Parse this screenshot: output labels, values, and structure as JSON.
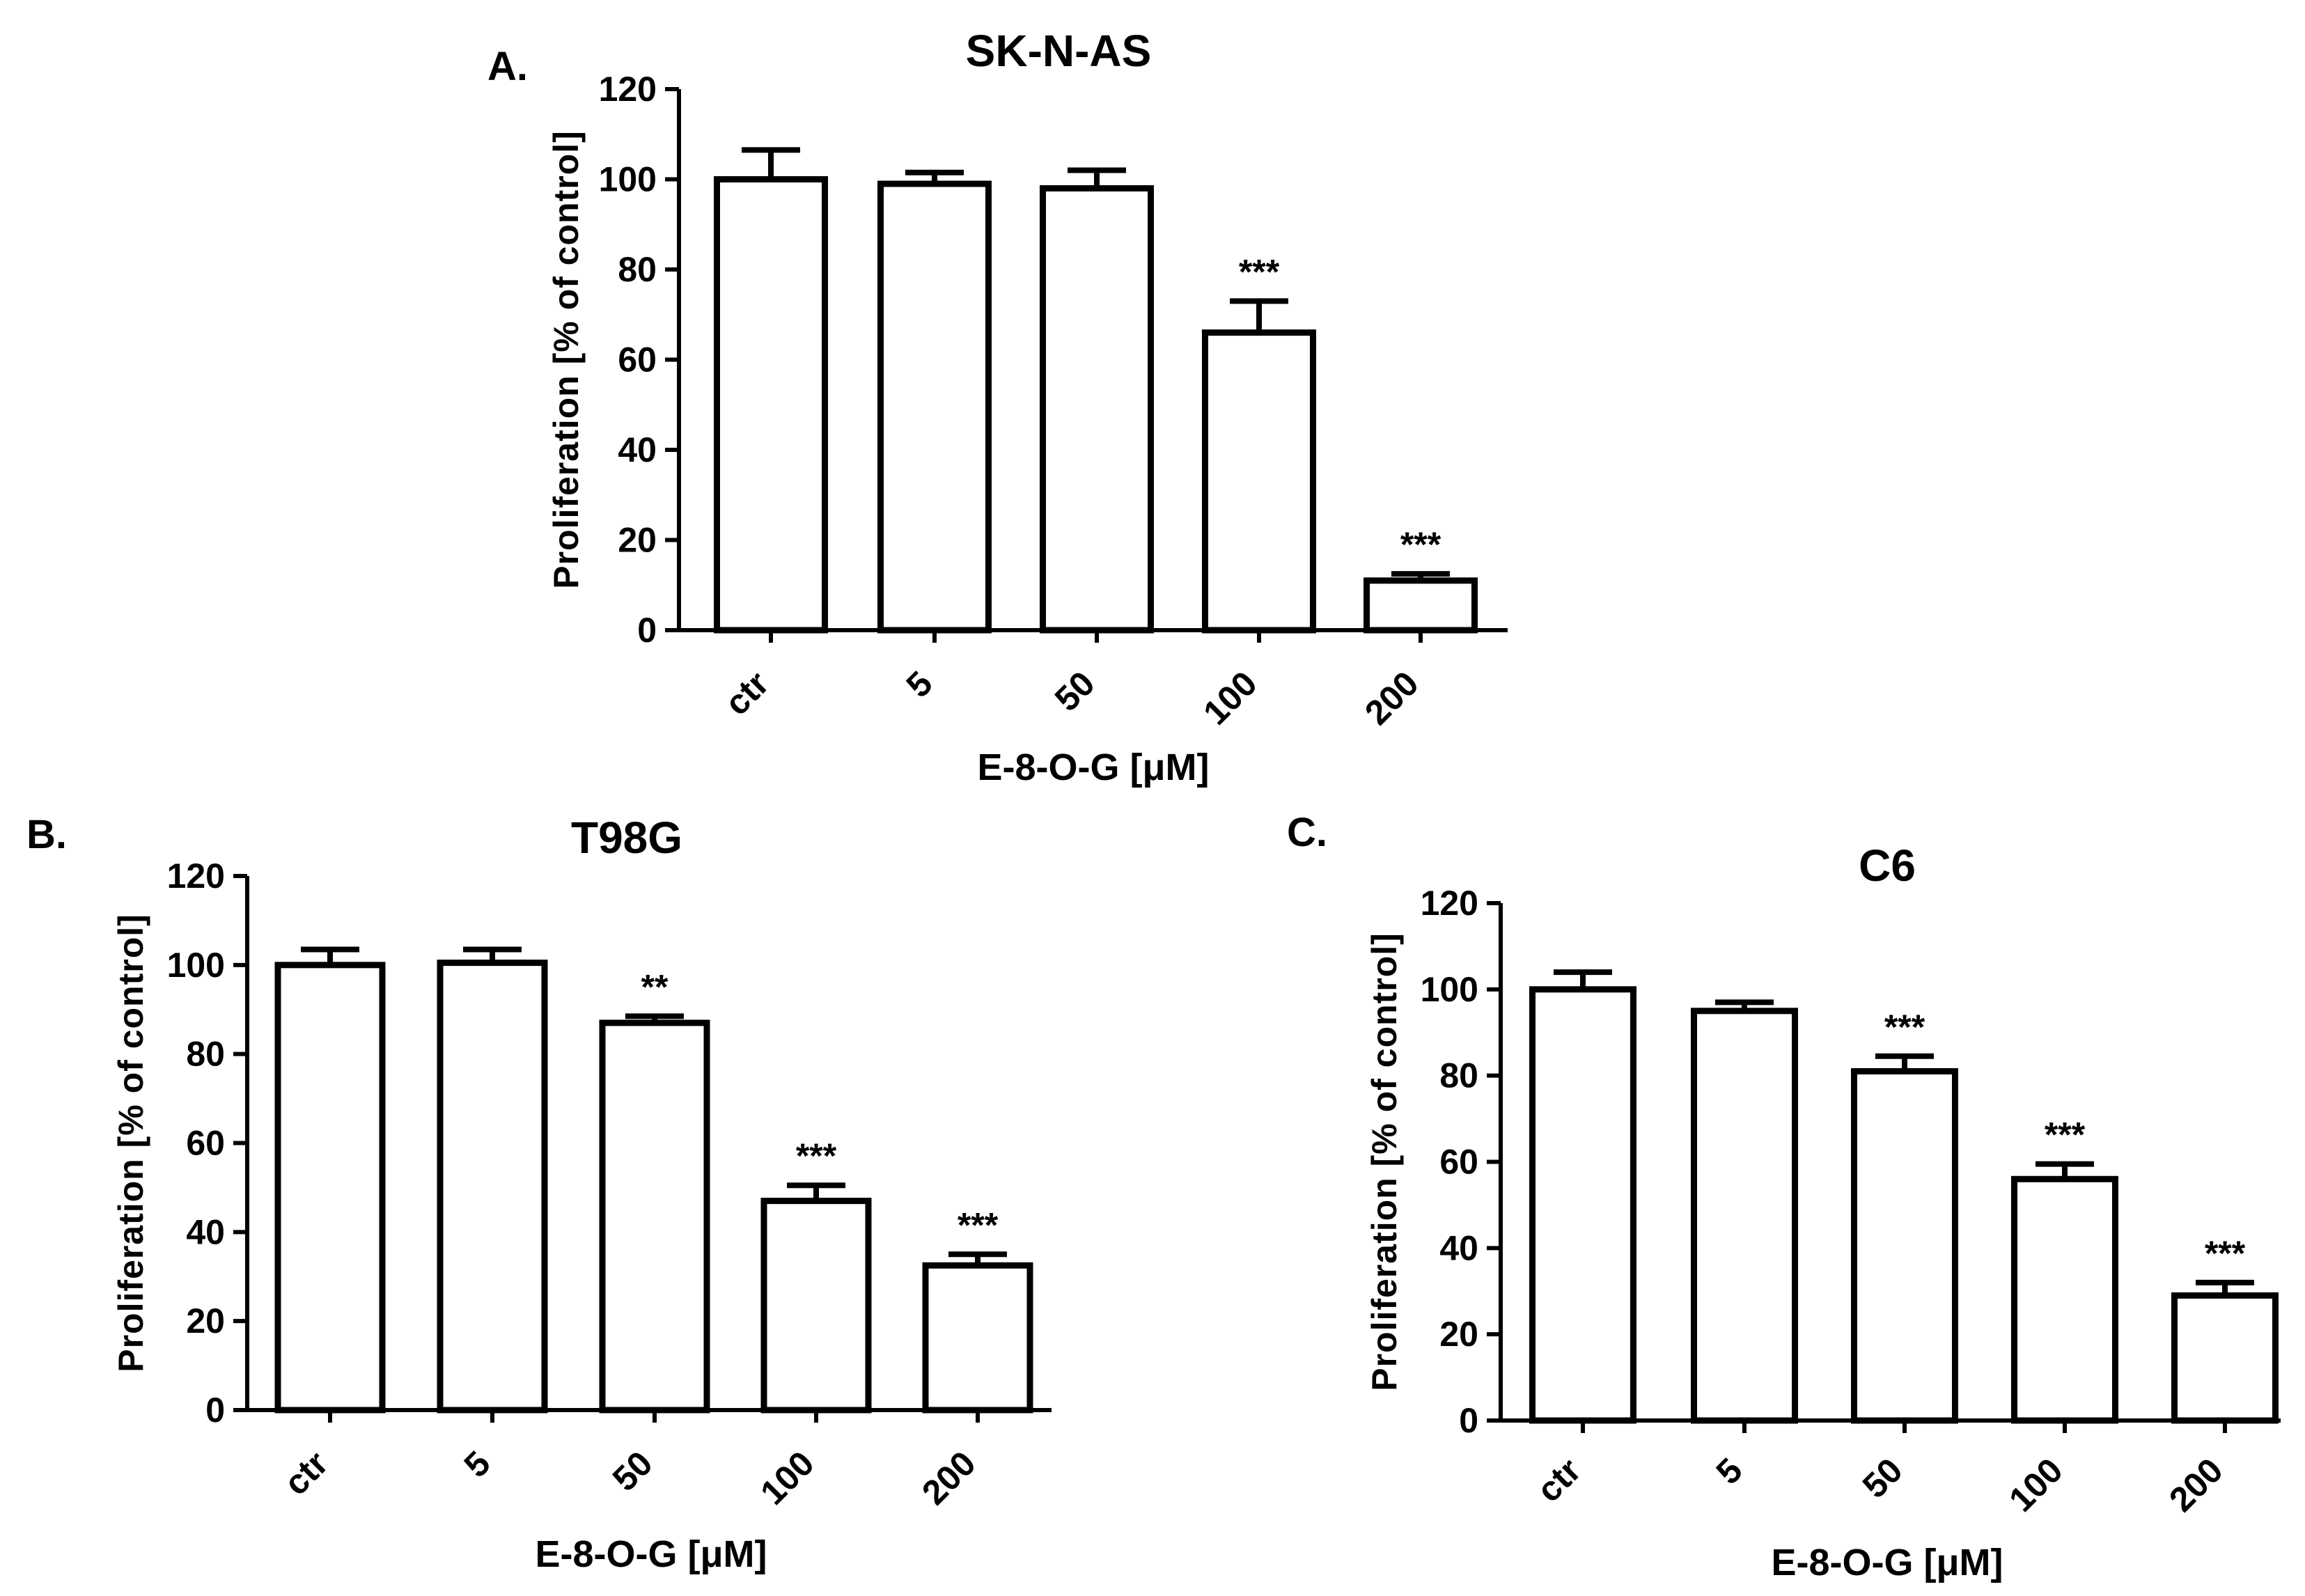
{
  "chart_data": [
    {
      "panel": "A.",
      "type": "bar",
      "title": "SK-N-AS",
      "categories": [
        "ctr",
        "5",
        "50",
        "100",
        "200"
      ],
      "values": [
        100,
        99,
        98,
        66,
        11
      ],
      "errors": [
        6.5,
        2.5,
        4,
        7,
        1.5
      ],
      "significance": [
        "",
        "",
        "",
        "***",
        "***"
      ],
      "xlabel": "E-8-O-G [μM]",
      "ylabel": "Proliferation [% of control]",
      "ylim": [
        0,
        120
      ],
      "yticks": [
        0,
        20,
        40,
        60,
        80,
        100,
        120
      ]
    },
    {
      "panel": "B.",
      "type": "bar",
      "title": "T98G",
      "categories": [
        "ctr",
        "5",
        "50",
        "100",
        "200"
      ],
      "values": [
        100,
        100.5,
        87,
        47,
        32.5
      ],
      "errors": [
        3.5,
        3,
        1.5,
        3.5,
        2.5
      ],
      "significance": [
        "",
        "",
        "**",
        "***",
        "***"
      ],
      "xlabel": "E-8-O-G [μM]",
      "ylabel": "Proliferation [% of control]",
      "ylim": [
        0,
        120
      ],
      "yticks": [
        0,
        20,
        40,
        60,
        80,
        100,
        120
      ]
    },
    {
      "panel": "C.",
      "type": "bar",
      "title": "C6",
      "categories": [
        "ctr",
        "5",
        "50",
        "100",
        "200"
      ],
      "values": [
        100,
        95,
        81,
        56,
        29
      ],
      "errors": [
        4,
        2,
        3.5,
        3.5,
        3
      ],
      "significance": [
        "",
        "",
        "***",
        "***",
        "***"
      ],
      "xlabel": "E-8-O-G [μM]",
      "ylabel": "Proliferation [% of control]",
      "ylim": [
        0,
        120
      ],
      "yticks": [
        0,
        20,
        40,
        60,
        80,
        100,
        120
      ]
    }
  ]
}
